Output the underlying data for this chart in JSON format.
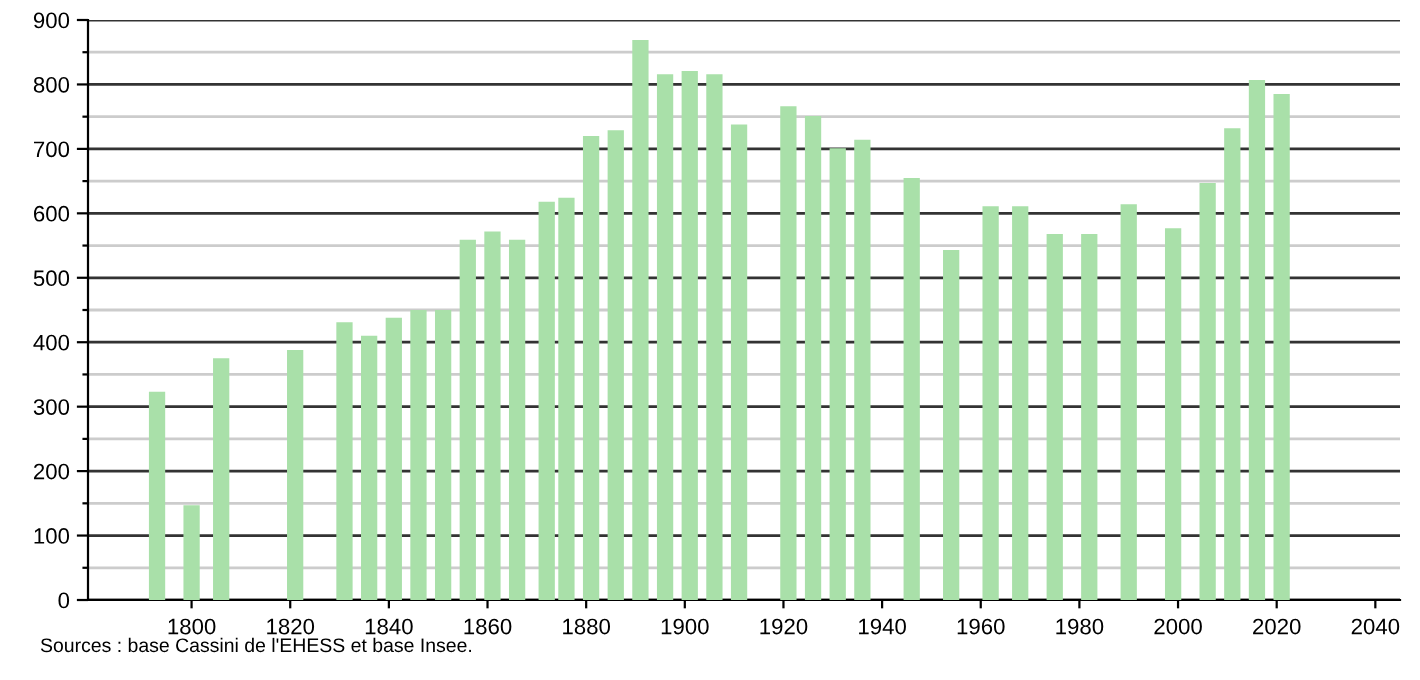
{
  "chart_data": {
    "type": "bar",
    "x": [
      1793,
      1800,
      1806,
      1821,
      1831,
      1836,
      1841,
      1846,
      1851,
      1856,
      1861,
      1866,
      1872,
      1876,
      1881,
      1886,
      1891,
      1896,
      1901,
      1906,
      1911,
      1921,
      1926,
      1931,
      1936,
      1946,
      1954,
      1962,
      1968,
      1975,
      1982,
      1990,
      1999,
      2006,
      2011,
      2016,
      2021
    ],
    "values": [
      323,
      147,
      375,
      388,
      431,
      410,
      438,
      450,
      450,
      559,
      572,
      559,
      618,
      624,
      720,
      729,
      869,
      816,
      821,
      816,
      738,
      766,
      751,
      701,
      714,
      655,
      543,
      611,
      611,
      568,
      568,
      614,
      577,
      647,
      732,
      807,
      785
    ],
    "color": "#a9e0a9",
    "xlim": [
      1779,
      2045
    ],
    "xticks": [
      1800,
      1820,
      1840,
      1860,
      1880,
      1900,
      1920,
      1940,
      1960,
      1980,
      2000,
      2020,
      2040
    ],
    "ylim": [
      0,
      900
    ],
    "yticks": [
      0,
      {
        "value": 50,
        "label": null
      },
      100,
      {
        "value": 150,
        "label": null
      },
      200,
      {
        "value": 250,
        "label": null
      },
      300,
      {
        "value": 350,
        "label": null
      },
      400,
      {
        "value": 450,
        "label": null
      },
      500,
      {
        "value": 550,
        "label": null
      },
      600,
      {
        "value": 650,
        "label": null
      },
      700,
      {
        "value": 750,
        "label": null
      },
      800,
      {
        "value": 850,
        "label": null
      },
      900
    ],
    "grid": "y",
    "annotations": [
      "Sources : base Cassini de l'EHESS et base Insee."
    ]
  }
}
